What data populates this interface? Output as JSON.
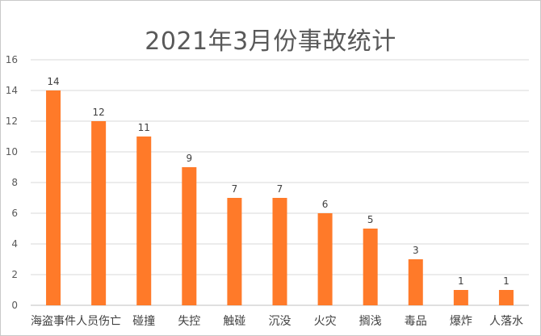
{
  "chart_data": {
    "type": "bar",
    "title": "2021年3月份事故统计",
    "categories": [
      "海盗事件",
      "人员伤亡",
      "碰撞",
      "失控",
      "触碰",
      "沉没",
      "火灾",
      "搁浅",
      "毒品",
      "爆炸",
      "人落水"
    ],
    "values": [
      14,
      12,
      11,
      9,
      7,
      7,
      6,
      5,
      3,
      1,
      1
    ],
    "ylim": [
      0,
      16
    ],
    "yticks": [
      0,
      2,
      4,
      6,
      8,
      10,
      12,
      14,
      16
    ],
    "xlabel": "",
    "ylabel": "",
    "grid": true,
    "legend": "none",
    "colors": {
      "bar": "#FF7A29",
      "grid": "#d9d9d9",
      "axis": "#bfbfbf"
    }
  }
}
